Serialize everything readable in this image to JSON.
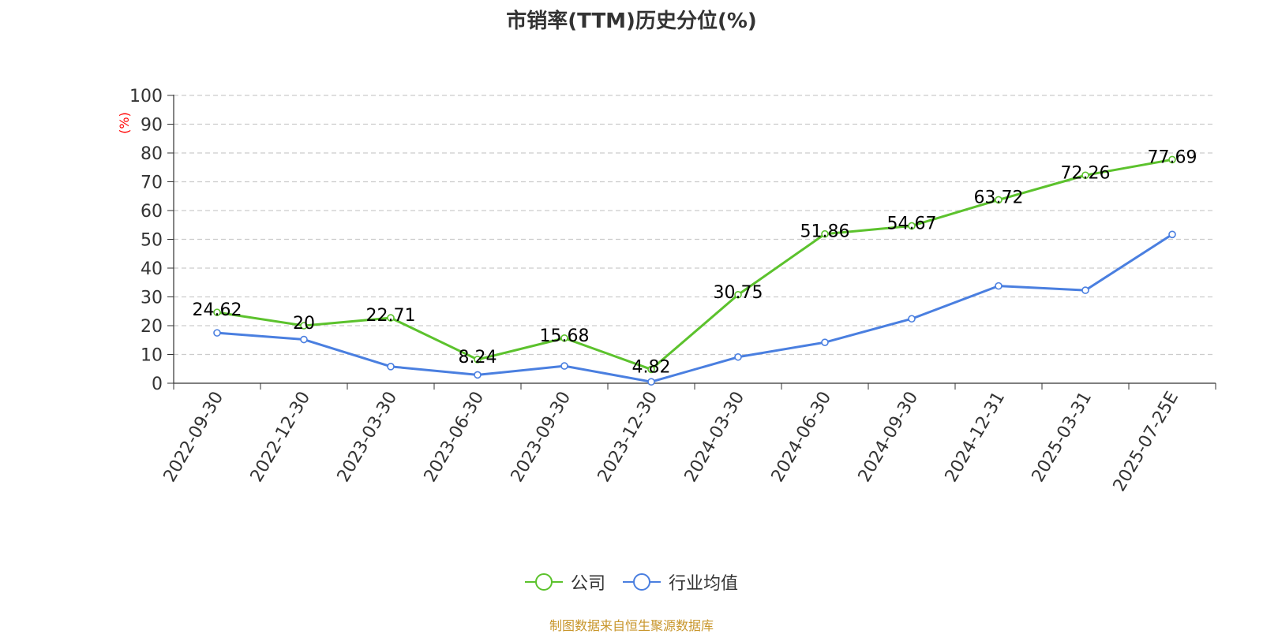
{
  "chart_data": {
    "type": "line",
    "title": "市销率(TTM)历史分位(%)",
    "ylabel": "(%)",
    "xlabel": "",
    "ylim": [
      0,
      100
    ],
    "yticks": [
      0,
      10,
      20,
      30,
      40,
      50,
      60,
      70,
      80,
      90,
      100
    ],
    "grid": true,
    "legend_position": "bottom-center",
    "categories": [
      "2022-09-30",
      "2022-12-30",
      "2023-03-30",
      "2023-06-30",
      "2023-09-30",
      "2023-12-30",
      "2024-03-30",
      "2024-06-30",
      "2024-09-30",
      "2024-12-31",
      "2025-03-31",
      "2025-07-25E"
    ],
    "series": [
      {
        "name": "公司",
        "color": "#5cc22d",
        "values": [
          24.62,
          20,
          22.71,
          8.24,
          15.68,
          4.82,
          30.75,
          51.86,
          54.67,
          63.72,
          72.26,
          77.69
        ],
        "labels": [
          "24.62",
          "20",
          "22.71",
          "8.24",
          "15.68",
          "4.82",
          "30.75",
          "51.86",
          "54.67",
          "63.72",
          "72.26",
          "77.69"
        ]
      },
      {
        "name": "行业均值",
        "color": "#4a7fe0",
        "values": [
          17.5,
          15.2,
          5.8,
          2.9,
          6.0,
          0.5,
          9.1,
          14.2,
          22.4,
          33.8,
          32.3,
          51.7
        ]
      }
    ]
  },
  "source_note": "制图数据来自恒生聚源数据库",
  "colors": {
    "title": "#333333",
    "axis": "#333333",
    "ylabel": "#ff0000",
    "grid": "#cccccc",
    "source_note": "#c8962c"
  }
}
